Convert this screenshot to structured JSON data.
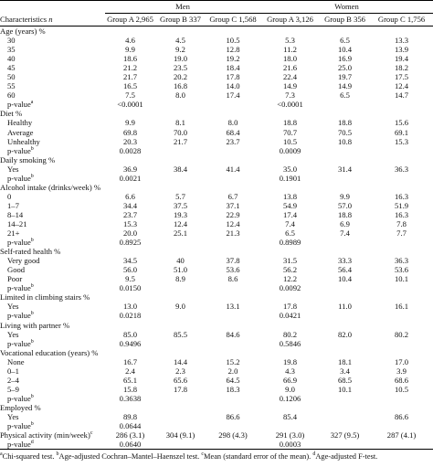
{
  "header": {
    "groups": [
      "Men",
      "Women"
    ],
    "columns": [
      {
        "label": "Characteristics",
        "n": "n"
      },
      {
        "label": "Group A",
        "n": "2,965"
      },
      {
        "label": "Group B",
        "n": "337"
      },
      {
        "label": "Group C",
        "n": "1,568"
      },
      {
        "label": "Group A",
        "n": "3,126"
      },
      {
        "label": "Group B",
        "n": "356"
      },
      {
        "label": "Group C",
        "n": "1,756"
      }
    ]
  },
  "sections": [
    {
      "title": "Age (years) %",
      "rows": [
        {
          "label": "30",
          "values": [
            "4.6",
            "4.5",
            "10.5",
            "5.3",
            "6.5",
            "13.3"
          ]
        },
        {
          "label": "35",
          "values": [
            "9.9",
            "9.2",
            "12.8",
            "11.2",
            "10.4",
            "13.9"
          ]
        },
        {
          "label": "40",
          "values": [
            "18.6",
            "19.0",
            "19.2",
            "18.0",
            "16.9",
            "19.4"
          ]
        },
        {
          "label": "45",
          "values": [
            "21.2",
            "23.5",
            "18.4",
            "21.6",
            "25.0",
            "18.2"
          ]
        },
        {
          "label": "50",
          "values": [
            "21.7",
            "20.2",
            "17.8",
            "22.4",
            "19.7",
            "17.5"
          ]
        },
        {
          "label": "55",
          "values": [
            "16.5",
            "16.8",
            "14.0",
            "14.9",
            "14.9",
            "12.4"
          ]
        },
        {
          "label": "60",
          "values": [
            "7.5",
            "8.0",
            "17.4",
            "7.3",
            "6.5",
            "14.7"
          ]
        },
        {
          "label": "p-value",
          "sup": "a",
          "values": [
            "<0.0001",
            null,
            null,
            "<0.0001",
            null,
            null
          ]
        }
      ]
    },
    {
      "title": "Diet %",
      "rows": [
        {
          "label": "Healthy",
          "values": [
            "9.9",
            "8.1",
            "8.0",
            "18.8",
            "18.8",
            "15.6"
          ]
        },
        {
          "label": "Average",
          "values": [
            "69.8",
            "70.0",
            "68.4",
            "70.7",
            "70.5",
            "69.1"
          ]
        },
        {
          "label": "Unhealthy",
          "values": [
            "20.3",
            "21.7",
            "23.7",
            "10.5",
            "10.8",
            "15.3"
          ]
        },
        {
          "label": "p-value",
          "sup": "b",
          "values": [
            "0.0028",
            null,
            null,
            "0.0009",
            null,
            null
          ]
        }
      ]
    },
    {
      "title": "Daily smoking %",
      "rows": [
        {
          "label": "Yes",
          "values": [
            "36.9",
            "38.4",
            "41.4",
            "35.0",
            "31.4",
            "36.3"
          ]
        },
        {
          "label": "p-value",
          "sup": "b",
          "values": [
            "0.0021",
            null,
            null,
            "0.1901",
            null,
            null
          ]
        }
      ]
    },
    {
      "title": "Alcohol intake (drinks/week) %",
      "rows": [
        {
          "label": "0",
          "values": [
            "6.6",
            "5.7",
            "6.7",
            "13.8",
            "9.9",
            "16.3"
          ]
        },
        {
          "label": "1–7",
          "values": [
            "34.4",
            "37.5",
            "37.1",
            "54.9",
            "57.0",
            "51.9"
          ]
        },
        {
          "label": "8–14",
          "values": [
            "23.7",
            "19.3",
            "22.9",
            "17.4",
            "18.8",
            "16.3"
          ]
        },
        {
          "label": "14–21",
          "values": [
            "15.3",
            "12.4",
            "12.4",
            "7.4",
            "6.9",
            "7.8"
          ]
        },
        {
          "label": "21+",
          "values": [
            "20.0",
            "25.1",
            "21.3",
            "6.5",
            "7.4",
            "7.7"
          ]
        },
        {
          "label": "p-value",
          "sup": "b",
          "values": [
            "0.8925",
            null,
            null,
            "0.8989",
            null,
            null
          ]
        }
      ]
    },
    {
      "title": "Self-rated health %",
      "rows": [
        {
          "label": "Very good",
          "values": [
            "34.5",
            "40",
            "37.8",
            "31.5",
            "33.3",
            "36.3"
          ]
        },
        {
          "label": "Good",
          "values": [
            "56.0",
            "51.0",
            "53.6",
            "56.2",
            "56.4",
            "53.6"
          ]
        },
        {
          "label": "Poor",
          "values": [
            "9.5",
            "8.9",
            "8.6",
            "12.2",
            "10.4",
            "10.1"
          ]
        },
        {
          "label": "p-value",
          "sup": "b",
          "values": [
            "0.0150",
            null,
            null,
            "0.0092",
            null,
            null
          ]
        }
      ]
    },
    {
      "title": "Limited in climbing stairs %",
      "rows": [
        {
          "label": "Yes",
          "values": [
            "13.0",
            "9.0",
            "13.1",
            "17.8",
            "11.0",
            "16.1"
          ]
        },
        {
          "label": "p-value",
          "sup": "b",
          "values": [
            "0.0218",
            null,
            null,
            "0.0421",
            null,
            null
          ]
        }
      ]
    },
    {
      "title": "Living with partner %",
      "rows": [
        {
          "label": "Yes",
          "values": [
            "85.0",
            "85.5",
            "84.6",
            "80.2",
            "82.0",
            "80.2"
          ]
        },
        {
          "label": "p-value",
          "sup": "b",
          "values": [
            "0.9496",
            null,
            null,
            "0.5846",
            null,
            null
          ]
        }
      ]
    },
    {
      "title": "Vocational education (years) %",
      "rows": [
        {
          "label": "None",
          "values": [
            "16.7",
            "14.4",
            "15.2",
            "19.8",
            "18.1",
            "17.0"
          ]
        },
        {
          "label": "0–1",
          "values": [
            "2.4",
            "2.3",
            "2.0",
            "4.3",
            "3.4",
            "3.9"
          ]
        },
        {
          "label": "2–4",
          "values": [
            "65.1",
            "65.6",
            "64.5",
            "66.9",
            "68.5",
            "68.6"
          ]
        },
        {
          "label": "5–9",
          "values": [
            "15.8",
            "17.8",
            "18.3",
            "9.0",
            "10.1",
            "10.5"
          ]
        },
        {
          "label": "p-value",
          "sup": "b",
          "values": [
            "0.3638",
            null,
            null,
            "0.1206",
            null,
            null
          ]
        }
      ]
    },
    {
      "title": "Employed %",
      "rows": [
        {
          "label": "Yes",
          "values": [
            "89.8",
            null,
            "86.6",
            "85.4",
            null,
            "86.6"
          ]
        },
        {
          "label": "p-value",
          "sup": "b",
          "values": [
            "0.0644",
            null,
            null,
            null,
            null,
            null
          ]
        }
      ]
    },
    {
      "title": "Physical activity (min/week)",
      "sup": "c",
      "values": [
        "286 (3.1)",
        "304 (9.1)",
        "298 (4.3)",
        "291 (3.0)",
        "327 (9.5)",
        "287 (4.1)"
      ],
      "rows": [
        {
          "label": "p-value",
          "sup": "d",
          "values": [
            "0.0640",
            null,
            null,
            "0.0003",
            null,
            null
          ]
        }
      ]
    }
  ],
  "footnotes": [
    {
      "sup": "a",
      "text": "Chi-squared test."
    },
    {
      "sup": "b",
      "text": "Age-adjusted Cochran–Mantel–Haenszel test."
    },
    {
      "sup": "c",
      "text": "Mean (standard error of the mean)."
    },
    {
      "sup": "d",
      "text": "Age-adjusted F-test."
    }
  ]
}
